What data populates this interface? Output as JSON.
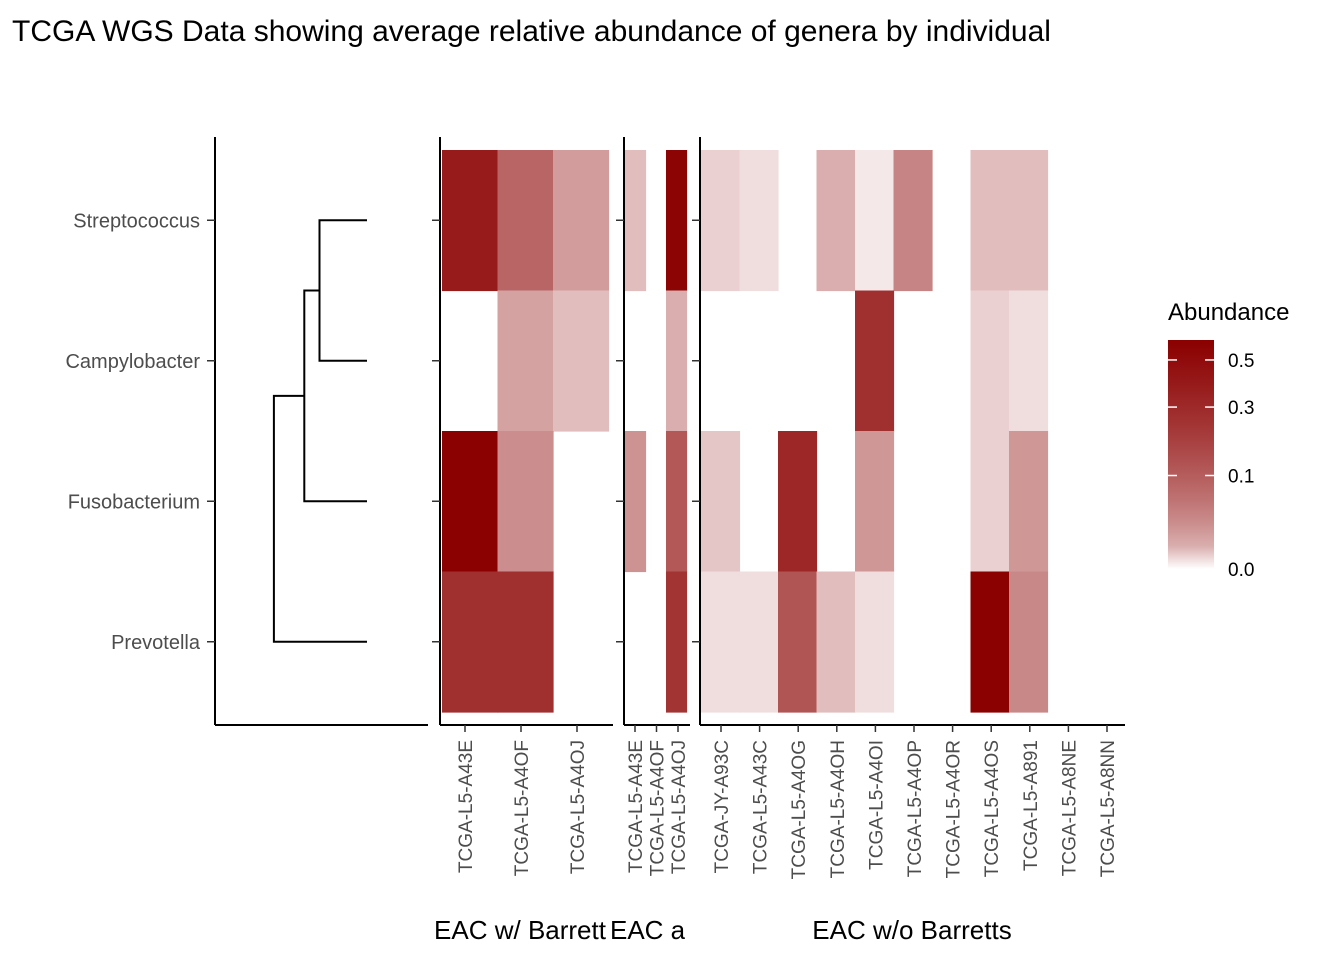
{
  "chart_data": {
    "type": "heatmap",
    "title": "TCGA WGS Data showing average relative abundance of genera by individual",
    "genera": [
      "Streptococcus",
      "Campylobacter",
      "Fusobacterium",
      "Prevotella"
    ],
    "dendrogram": {
      "merges": [
        {
          "left": "Streptococcus",
          "right": "Campylobacter",
          "height": 0.25
        },
        {
          "left": "Streptococcus+Campylobacter",
          "right": "Fusobacterium",
          "height": 0.33
        },
        {
          "left": "Streptococcus+Campylobacter+Fusobacterium",
          "right": "Prevotella",
          "height": 0.49
        }
      ]
    },
    "legend": {
      "title": "Abundance",
      "ticks": [
        {
          "label": "0.5",
          "value": 0.5
        },
        {
          "label": "0.3",
          "value": 0.3
        },
        {
          "label": "0.1",
          "value": 0.1
        },
        {
          "label": "0.0",
          "value": 0.0
        }
      ],
      "max": 0.6,
      "low_color": "#ffffff",
      "high_color": "#8b0000"
    },
    "panels": [
      {
        "title": "EAC w/ Barrett",
        "samples": [
          "TCGA-L5-A43E",
          "TCGA-L5-A4OF",
          "TCGA-L5-A4OJ"
        ],
        "values": [
          [
            0.48,
            0.22,
            0.09
          ],
          [
            null,
            0.08,
            0.04
          ],
          [
            0.62,
            0.12,
            null
          ],
          [
            0.4,
            0.4,
            null
          ]
        ]
      },
      {
        "title": "EAC adj. w/ Barretts",
        "samples": [
          "TCGA-L5-A43E",
          "TCGA-L5-A4OF",
          "TCGA-L5-A4OJ"
        ],
        "values": [
          [
            0.04,
            null,
            0.58
          ],
          [
            null,
            null,
            0.06
          ],
          [
            0.11,
            null,
            0.26
          ],
          [
            null,
            null,
            0.38
          ]
        ]
      },
      {
        "title": "EAC w/o Barretts",
        "samples": [
          "TCGA-JY-A93C",
          "TCGA-L5-A43C",
          "TCGA-L5-A4OG",
          "TCGA-L5-A4OH",
          "TCGA-L5-A4OI",
          "TCGA-L5-A4OP",
          "TCGA-L5-A4OR",
          "TCGA-L5-A4OS",
          "TCGA-L5-A891",
          "TCGA-L5-A8NE",
          "TCGA-L5-A8NN"
        ],
        "values": [
          [
            0.02,
            0.01,
            null,
            0.06,
            0.005,
            0.14,
            null,
            0.04,
            0.04,
            null,
            null
          ],
          [
            null,
            null,
            null,
            null,
            0.4,
            null,
            null,
            0.02,
            0.01,
            null,
            null
          ],
          [
            0.03,
            null,
            0.43,
            null,
            0.1,
            null,
            null,
            0.02,
            0.1,
            null,
            null
          ],
          [
            0.01,
            0.01,
            0.27,
            0.04,
            0.01,
            null,
            null,
            0.62,
            0.13,
            null,
            null
          ]
        ]
      }
    ]
  }
}
